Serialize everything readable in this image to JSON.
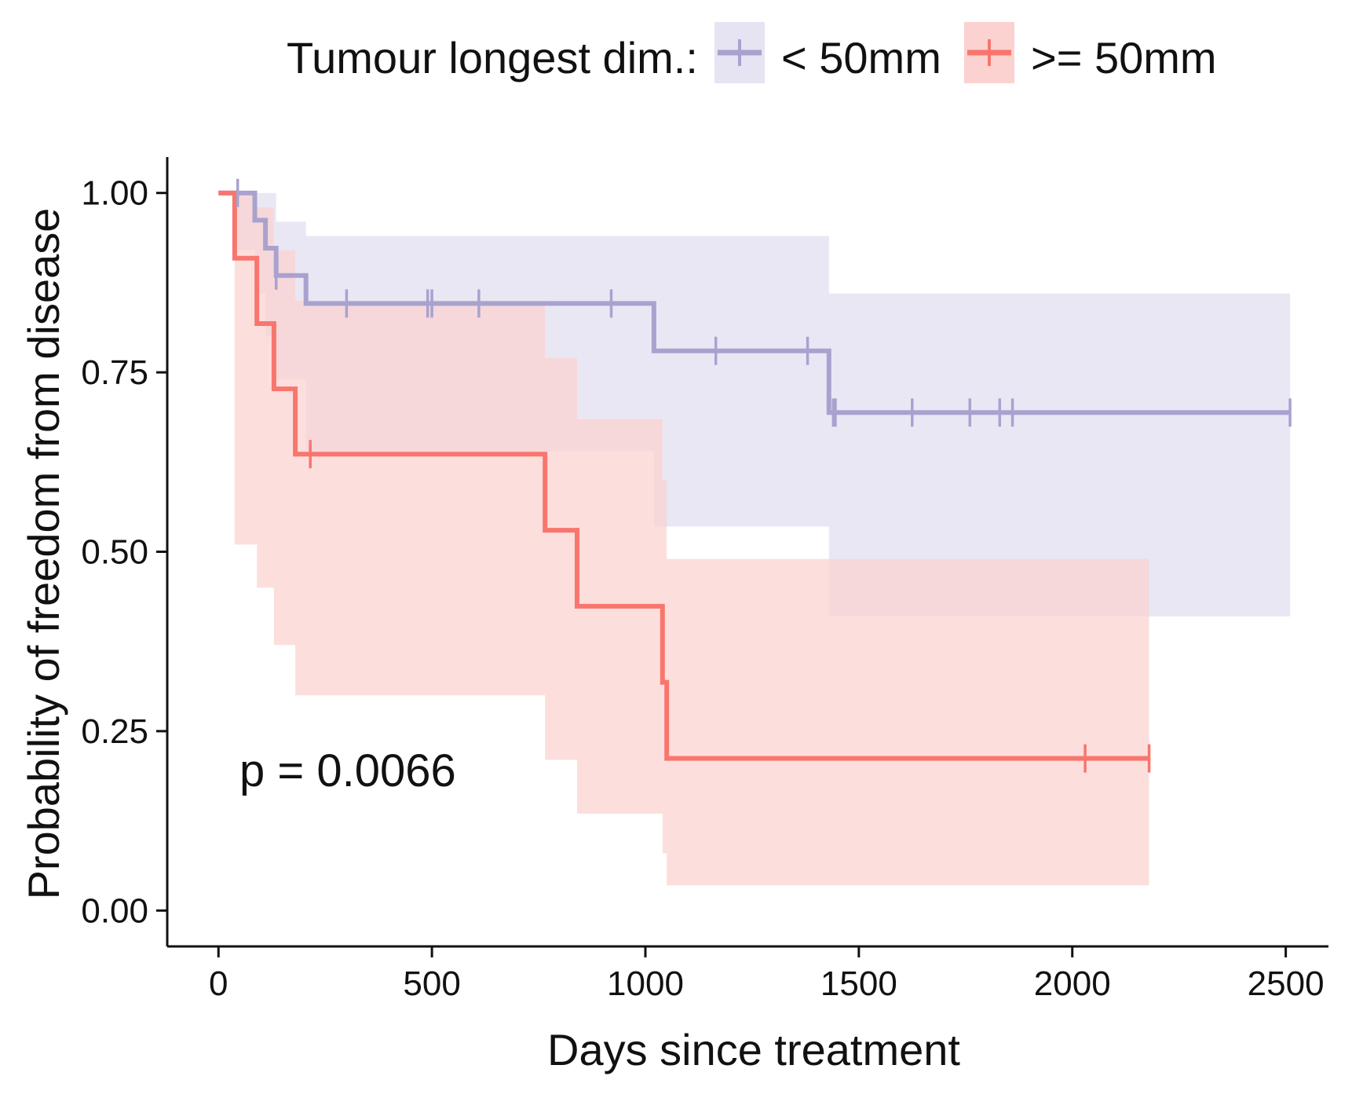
{
  "chart_data": {
    "type": "line",
    "subtype": "kaplan-meier survival curve with confidence bands",
    "title": "",
    "xlabel": "Days since treatment",
    "ylabel": "Probability of freedom from disease",
    "xlim": [
      -120,
      2600
    ],
    "ylim": [
      -0.05,
      1.05
    ],
    "xticks": [
      0,
      500,
      1000,
      1500,
      2000,
      2500
    ],
    "xtick_labels": [
      "0",
      "500",
      "1000",
      "1500",
      "2000",
      "2500"
    ],
    "yticks": [
      0,
      0.25,
      0.5,
      0.75,
      1.0
    ],
    "ytick_labels": [
      "0.00",
      "0.25",
      "0.50",
      "0.75",
      "1.00"
    ],
    "grid": false,
    "legend": {
      "title": "Tumour longest dim.:",
      "position": "top",
      "entries": [
        "< 50mm",
        ">= 50mm"
      ]
    },
    "annotation": "p = 0.0066",
    "series": [
      {
        "name": "< 50mm",
        "color": "#A9A2CF",
        "band_color": "#E6E3F3",
        "steps": [
          {
            "x": 0,
            "y": 1.0,
            "lower": 1.0,
            "upper": 1.0
          },
          {
            "x": 35,
            "y": 1.0,
            "lower": 0.92,
            "upper": 1.0
          },
          {
            "x": 85,
            "y": 0.962,
            "lower": 0.86,
            "upper": 1.0
          },
          {
            "x": 110,
            "y": 0.923,
            "lower": 0.8,
            "upper": 1.0
          },
          {
            "x": 135,
            "y": 0.885,
            "lower": 0.74,
            "upper": 0.96
          },
          {
            "x": 205,
            "y": 0.846,
            "lower": 0.64,
            "upper": 0.94
          },
          {
            "x": 1020,
            "y": 0.78,
            "lower": 0.535,
            "upper": 0.94
          },
          {
            "x": 1430,
            "y": 0.694,
            "lower": 0.41,
            "upper": 0.86
          }
        ],
        "end_x": 2510,
        "censors": [
          45,
          135,
          300,
          490,
          500,
          610,
          920,
          1165,
          1380,
          1440,
          1445,
          1625,
          1760,
          1830,
          1860,
          2510
        ]
      },
      {
        "name": ">= 50mm",
        "color": "#F8766D",
        "band_color": "#FBD2CF",
        "steps": [
          {
            "x": 0,
            "y": 1.0,
            "lower": 1.0,
            "upper": 1.0
          },
          {
            "x": 38,
            "y": 0.909,
            "lower": 0.51,
            "upper": 1.0
          },
          {
            "x": 90,
            "y": 0.818,
            "lower": 0.45,
            "upper": 0.98
          },
          {
            "x": 130,
            "y": 0.727,
            "lower": 0.37,
            "upper": 0.92
          },
          {
            "x": 180,
            "y": 0.636,
            "lower": 0.3,
            "upper": 0.85
          },
          {
            "x": 765,
            "y": 0.53,
            "lower": 0.21,
            "upper": 0.77
          },
          {
            "x": 840,
            "y": 0.424,
            "lower": 0.135,
            "upper": 0.685
          },
          {
            "x": 1040,
            "y": 0.318,
            "lower": 0.08,
            "upper": 0.6
          },
          {
            "x": 1050,
            "y": 0.212,
            "lower": 0.035,
            "upper": 0.49
          }
        ],
        "end_x": 2180,
        "censors": [
          215,
          2030,
          2180
        ]
      }
    ]
  }
}
